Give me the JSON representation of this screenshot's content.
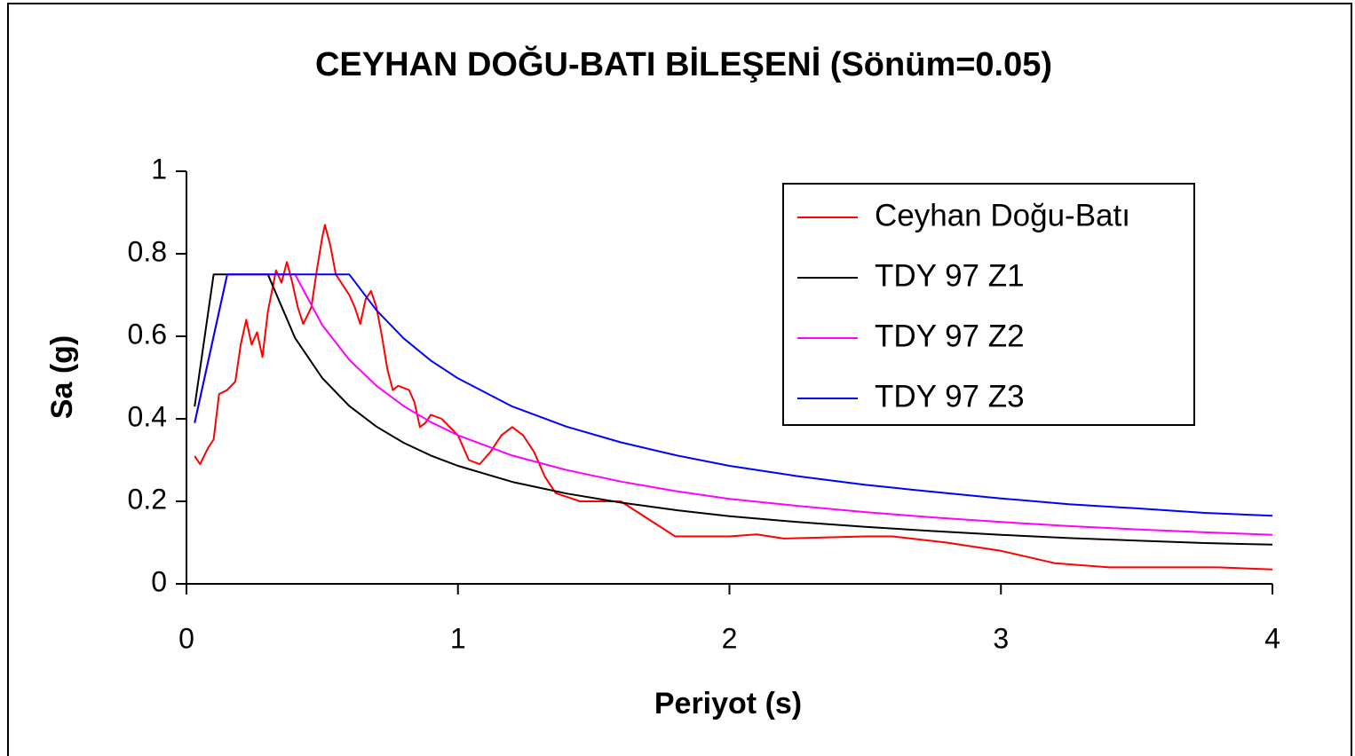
{
  "chart_data": {
    "type": "line",
    "title": "CEYHAN DOĞU-BATI BİLEŞENİ (Sönüm=0.05)",
    "x_label": "Periyot (s)",
    "y_label": "Sa (g)",
    "xlim": [
      0,
      4
    ],
    "xticks": [
      0,
      1,
      2,
      3,
      4
    ],
    "ylim": [
      0,
      1
    ],
    "yticks": [
      0,
      0.2,
      0.4,
      0.6,
      0.8,
      1
    ],
    "grid": false,
    "legend": "upper right",
    "series": [
      {
        "name": "Ceyhan Doğu-Batı",
        "color": "#ff0000",
        "x": [
          0.03,
          0.05,
          0.08,
          0.1,
          0.12,
          0.15,
          0.18,
          0.2,
          0.22,
          0.24,
          0.26,
          0.28,
          0.3,
          0.33,
          0.35,
          0.37,
          0.39,
          0.41,
          0.43,
          0.46,
          0.48,
          0.5,
          0.51,
          0.53,
          0.55,
          0.58,
          0.6,
          0.62,
          0.64,
          0.66,
          0.68,
          0.7,
          0.72,
          0.74,
          0.76,
          0.78,
          0.82,
          0.84,
          0.86,
          0.88,
          0.9,
          0.94,
          1.0,
          1.04,
          1.08,
          1.12,
          1.16,
          1.2,
          1.24,
          1.28,
          1.32,
          1.36,
          1.45,
          1.6,
          1.8,
          2.0,
          2.1,
          2.2,
          2.5,
          2.6,
          2.8,
          3.0,
          3.2,
          3.4,
          3.8,
          4.0
        ],
        "values": [
          0.31,
          0.29,
          0.33,
          0.35,
          0.46,
          0.47,
          0.49,
          0.58,
          0.64,
          0.58,
          0.61,
          0.55,
          0.66,
          0.76,
          0.73,
          0.78,
          0.73,
          0.67,
          0.63,
          0.67,
          0.76,
          0.84,
          0.87,
          0.82,
          0.75,
          0.72,
          0.7,
          0.67,
          0.63,
          0.69,
          0.71,
          0.67,
          0.6,
          0.52,
          0.47,
          0.48,
          0.47,
          0.44,
          0.38,
          0.39,
          0.41,
          0.4,
          0.36,
          0.3,
          0.29,
          0.32,
          0.36,
          0.38,
          0.36,
          0.32,
          0.26,
          0.22,
          0.2,
          0.2,
          0.115,
          0.115,
          0.12,
          0.11,
          0.115,
          0.115,
          0.1,
          0.08,
          0.05,
          0.04,
          0.04,
          0.035
        ]
      },
      {
        "name": "TDY 97 Z1",
        "color": "#000000",
        "x": [
          0.03,
          0.1,
          0.15,
          0.2,
          0.3,
          0.4,
          0.5,
          0.6,
          0.7,
          0.8,
          0.9,
          1.0,
          1.2,
          1.4,
          1.6,
          1.8,
          2.0,
          2.25,
          2.5,
          2.75,
          3.0,
          3.25,
          3.5,
          3.75,
          4.0
        ],
        "values": [
          0.43,
          0.75,
          0.75,
          0.75,
          0.75,
          0.596,
          0.499,
          0.431,
          0.381,
          0.342,
          0.311,
          0.286,
          0.247,
          0.219,
          0.197,
          0.179,
          0.164,
          0.15,
          0.138,
          0.128,
          0.119,
          0.111,
          0.105,
          0.099,
          0.095
        ]
      },
      {
        "name": "TDY 97 Z2",
        "color": "#ff00ff",
        "x": [
          0.03,
          0.1,
          0.15,
          0.2,
          0.3,
          0.4,
          0.5,
          0.6,
          0.7,
          0.8,
          0.9,
          1.0,
          1.2,
          1.4,
          1.6,
          1.8,
          2.0,
          2.25,
          2.5,
          2.75,
          3.0,
          3.25,
          3.5,
          3.75,
          4.0
        ],
        "values": [
          0.39,
          0.6,
          0.75,
          0.75,
          0.75,
          0.75,
          0.627,
          0.543,
          0.48,
          0.431,
          0.392,
          0.36,
          0.311,
          0.276,
          0.248,
          0.225,
          0.206,
          0.189,
          0.174,
          0.161,
          0.15,
          0.14,
          0.132,
          0.125,
          0.119
        ]
      },
      {
        "name": "TDY 97 Z3",
        "color": "#0000ff",
        "x": [
          0.03,
          0.1,
          0.15,
          0.2,
          0.3,
          0.4,
          0.5,
          0.6,
          0.7,
          0.8,
          0.9,
          1.0,
          1.2,
          1.4,
          1.6,
          1.8,
          2.0,
          2.25,
          2.5,
          2.75,
          3.0,
          3.25,
          3.5,
          3.75,
          4.0
        ],
        "values": [
          0.39,
          0.6,
          0.75,
          0.75,
          0.75,
          0.75,
          0.75,
          0.75,
          0.663,
          0.595,
          0.541,
          0.498,
          0.43,
          0.381,
          0.343,
          0.312,
          0.286,
          0.261,
          0.24,
          0.223,
          0.207,
          0.193,
          0.183,
          0.172,
          0.165
        ]
      }
    ]
  }
}
